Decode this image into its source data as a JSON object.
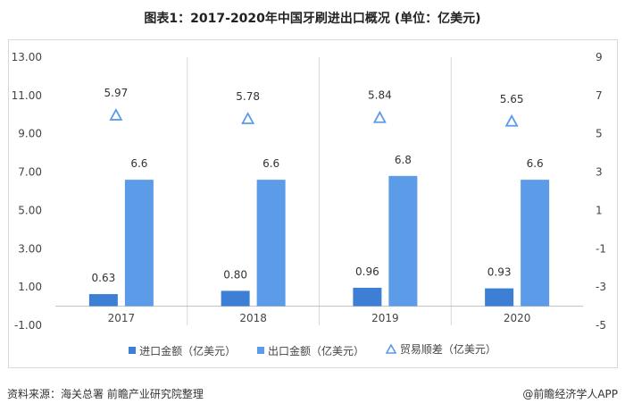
{
  "title": "图表1：2017-2020年中国牙刷进出口概况 (单位：亿美元)",
  "chart_data": {
    "type": "bar",
    "categories": [
      "2017",
      "2018",
      "2019",
      "2020"
    ],
    "series": [
      {
        "name": "进口金额（亿美元）",
        "kind": "bar",
        "axis": "left",
        "color": "#3e7fd6",
        "values": [
          0.63,
          0.8,
          0.96,
          0.93
        ],
        "labels": [
          "0.63",
          "0.80",
          "0.96",
          "0.93"
        ]
      },
      {
        "name": "出口金额（亿美元）",
        "kind": "bar",
        "axis": "left",
        "color": "#5b9be8",
        "values": [
          6.6,
          6.6,
          6.8,
          6.6
        ],
        "labels": [
          "6.6",
          "6.6",
          "6.8",
          "6.6"
        ]
      },
      {
        "name": "贸易顺差（亿美元）",
        "kind": "marker",
        "marker": "triangle",
        "axis": "right",
        "color": "#5b9be8",
        "values": [
          5.97,
          5.78,
          5.84,
          5.65
        ],
        "labels": [
          "5.97",
          "5.78",
          "5.84",
          "5.65"
        ]
      }
    ],
    "left_axis": {
      "ylim": [
        -1,
        13
      ],
      "ticks": [
        "-1.00",
        "1.00",
        "3.00",
        "5.00",
        "7.00",
        "9.00",
        "11.00",
        "13.00"
      ]
    },
    "right_axis": {
      "ylim": [
        -5,
        9
      ],
      "ticks": [
        "-5",
        "-3",
        "-1",
        "1",
        "3",
        "5",
        "7",
        "9"
      ]
    },
    "legend_position": "bottom"
  },
  "footer": {
    "source": "资料来源：海关总署 前瞻产业研究院整理",
    "brand": "@前瞻经济学人APP"
  }
}
